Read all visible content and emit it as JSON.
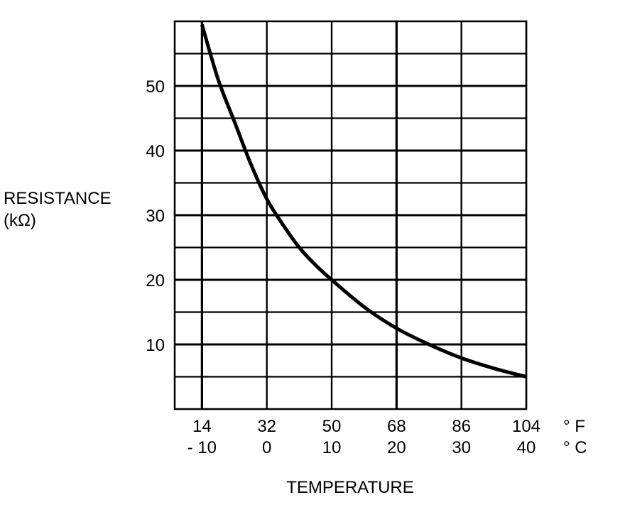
{
  "chart_data": {
    "type": "line",
    "title": "",
    "xlabel": "TEMPERATURE",
    "ylabel": "RESISTANCE (kΩ)",
    "ylabel_lines": [
      "RESISTANCE",
      "(kΩ)"
    ],
    "ylim": [
      0,
      60
    ],
    "xlim_celsius": [
      -14.2,
      40
    ],
    "y_ticks": [
      10,
      20,
      30,
      40,
      50
    ],
    "y_grid_step": 5,
    "x_ticks_celsius": [
      -10,
      0,
      10,
      20,
      30,
      40
    ],
    "x_tick_labels_f": [
      "14",
      "32",
      "50",
      "68",
      "86",
      "104"
    ],
    "x_tick_labels_c": [
      "- 10",
      "0",
      "10",
      "20",
      "30",
      "40"
    ],
    "unit_f": "° F",
    "unit_c": "° C",
    "grid": true,
    "series": [
      {
        "name": "Resistance",
        "x_celsius": [
          -10,
          -7.5,
          -5,
          -2.5,
          0,
          2.5,
          5,
          7.5,
          10,
          15,
          20,
          25,
          30,
          35,
          40
        ],
        "values": [
          59.5,
          51,
          44.5,
          38,
          32.5,
          28.5,
          25,
          22.3,
          20,
          15.8,
          12.5,
          10,
          7.9,
          6.3,
          5.0
        ]
      }
    ]
  }
}
